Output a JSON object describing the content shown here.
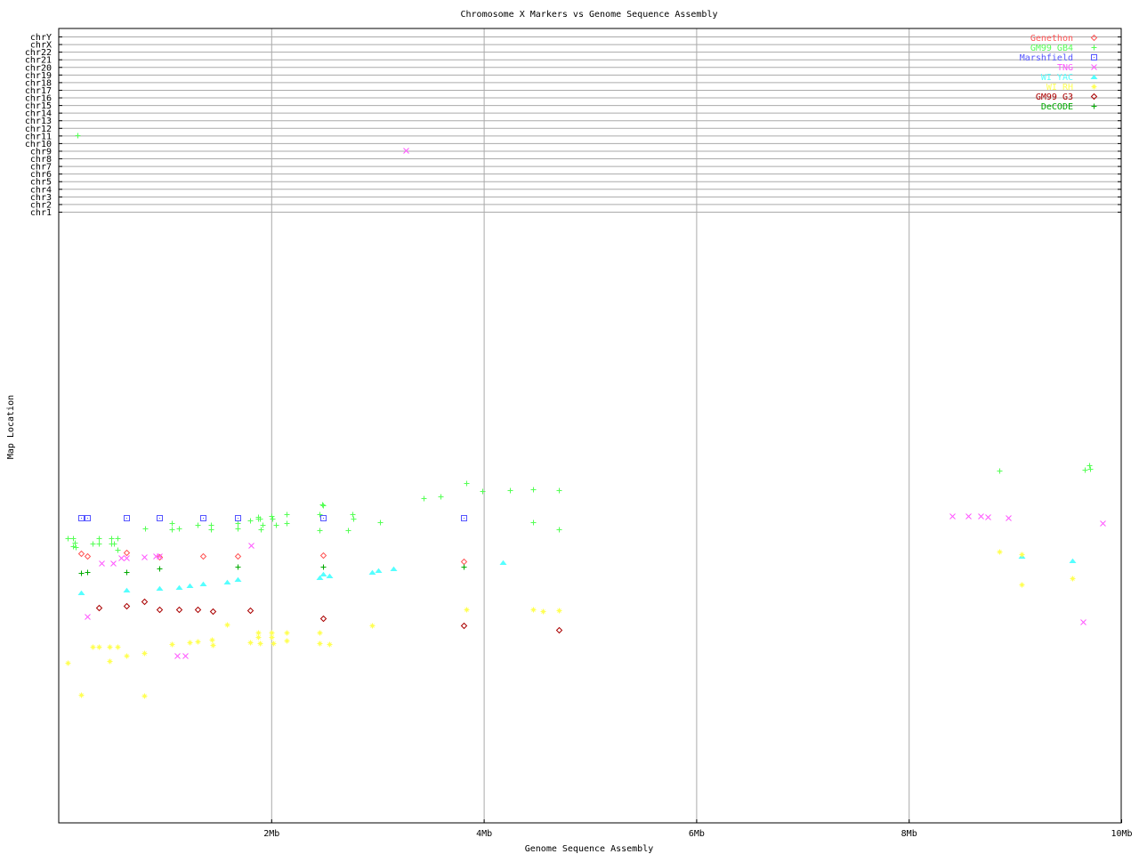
{
  "chart_data": {
    "type": "scatter",
    "title": "Chromosome X Markers vs Genome Sequence Assembly",
    "xlabel": "Genome Sequence Assembly",
    "ylabel": "Map Location",
    "xlim": [
      0,
      10
    ],
    "x_unit": "Mb",
    "x_ticks": [
      {
        "value": 2,
        "label": "2Mb"
      },
      {
        "value": 4,
        "label": "4Mb"
      },
      {
        "value": 6,
        "label": "6Mb"
      },
      {
        "value": 8,
        "label": "8Mb"
      },
      {
        "value": 10,
        "label": "10Mb"
      }
    ],
    "ylim": [
      0,
      260
    ],
    "chromosome_ticks": [
      "chr1",
      "chr2",
      "chr3",
      "chr4",
      "chr5",
      "chr6",
      "chr7",
      "chr8",
      "chr9",
      "chr10",
      "chr11",
      "chr12",
      "chr13",
      "chr14",
      "chr15",
      "chr16",
      "chr17",
      "chr18",
      "chr19",
      "chr20",
      "chr21",
      "chr22",
      "chrX",
      "chrY"
    ],
    "grid": true,
    "legend_placement": "top-right",
    "series": [
      {
        "name": "Genethon",
        "color": "#ff5555",
        "marker": "diamond",
        "points": [
          [
            0.21,
            88.2
          ],
          [
            0.27,
            87.3
          ],
          [
            0.64,
            88.5
          ],
          [
            0.95,
            87.0
          ],
          [
            1.36,
            87.3
          ],
          [
            1.68,
            87.3
          ],
          [
            2.49,
            87.6
          ],
          [
            3.81,
            85.6
          ]
        ]
      },
      {
        "name": "GM99 GB4",
        "color": "#55ff55",
        "marker": "plus",
        "points": [
          [
            0.08,
            93.1
          ],
          [
            0.13,
            93.1
          ],
          [
            0.15,
            91.7
          ],
          [
            0.13,
            90.5
          ],
          [
            0.16,
            90.2
          ],
          [
            0.32,
            91.4
          ],
          [
            0.38,
            93.1
          ],
          [
            0.38,
            91.4
          ],
          [
            0.49,
            93.1
          ],
          [
            0.49,
            91.4
          ],
          [
            0.52,
            91.4
          ],
          [
            0.55,
            93.1
          ],
          [
            0.55,
            89.3
          ],
          [
            0.81,
            96.3
          ],
          [
            1.06,
            98.1
          ],
          [
            1.06,
            96.0
          ],
          [
            1.13,
            96.3
          ],
          [
            1.31,
            97.5
          ],
          [
            1.43,
            97.5
          ],
          [
            1.43,
            96.0
          ],
          [
            1.68,
            96.3
          ],
          [
            1.68,
            98.1
          ],
          [
            1.8,
            98.9
          ],
          [
            1.88,
            99.5
          ],
          [
            1.89,
            99.5
          ],
          [
            1.9,
            96.0
          ],
          [
            1.92,
            97.5
          ],
          [
            1.88,
            100.1
          ],
          [
            2.0,
            100.4
          ],
          [
            2.01,
            99.5
          ],
          [
            2.04,
            97.5
          ],
          [
            2.14,
            101.0
          ],
          [
            2.14,
            98.1
          ],
          [
            2.48,
            104.2
          ],
          [
            2.49,
            103.9
          ],
          [
            2.45,
            101.0
          ],
          [
            2.45,
            95.7
          ],
          [
            2.72,
            95.7
          ],
          [
            2.76,
            101.0
          ],
          [
            2.77,
            99.5
          ],
          [
            3.02,
            98.4
          ],
          [
            3.43,
            106.2
          ],
          [
            3.59,
            106.8
          ],
          [
            3.84,
            111.2
          ],
          [
            3.99,
            108.5
          ],
          [
            4.25,
            108.8
          ],
          [
            4.46,
            109.1
          ],
          [
            4.71,
            108.8
          ],
          [
            4.46,
            98.4
          ],
          [
            4.71,
            96.0
          ],
          [
            8.85,
            115.2
          ],
          [
            9.66,
            115.5
          ],
          [
            9.7,
            117.0
          ],
          [
            9.71,
            115.8
          ]
        ]
      },
      {
        "name": "Marshfield",
        "color": "#5555ff",
        "marker": "square",
        "points": [
          [
            0.21,
            99.8
          ],
          [
            0.27,
            99.8
          ],
          [
            0.64,
            99.8
          ],
          [
            0.95,
            99.8
          ],
          [
            1.36,
            99.8
          ],
          [
            1.68,
            99.8
          ],
          [
            2.49,
            99.8
          ],
          [
            3.81,
            99.8
          ]
        ]
      },
      {
        "name": "TNG",
        "color": "#ff55ff",
        "marker": "cross",
        "points": [
          [
            0.4,
            85.0
          ],
          [
            0.51,
            85.0
          ],
          [
            0.59,
            86.7
          ],
          [
            0.64,
            86.7
          ],
          [
            0.8,
            87.0
          ],
          [
            0.91,
            87.3
          ],
          [
            0.95,
            87.3
          ],
          [
            1.81,
            90.8
          ],
          [
            0.27,
            67.5
          ],
          [
            1.11,
            54.7
          ],
          [
            1.19,
            54.7
          ],
          [
            8.41,
            100.4
          ],
          [
            8.56,
            100.4
          ],
          [
            8.68,
            100.4
          ],
          [
            8.74,
            100.1
          ],
          [
            8.94,
            99.8
          ],
          [
            9.82,
            98.1
          ],
          [
            9.64,
            65.8
          ]
        ]
      },
      {
        "name": "WI YAC",
        "color": "#55ffff",
        "marker": "triangle",
        "points": [
          [
            0.21,
            75.4
          ],
          [
            0.64,
            76.2
          ],
          [
            0.95,
            76.8
          ],
          [
            1.13,
            77.1
          ],
          [
            1.23,
            77.7
          ],
          [
            1.36,
            78.3
          ],
          [
            1.58,
            78.9
          ],
          [
            1.68,
            79.7
          ],
          [
            2.45,
            80.3
          ],
          [
            2.49,
            81.5
          ],
          [
            2.55,
            80.9
          ],
          [
            2.95,
            82.1
          ],
          [
            3.01,
            82.6
          ],
          [
            3.15,
            83.2
          ],
          [
            4.18,
            85.3
          ],
          [
            9.06,
            87.3
          ],
          [
            9.54,
            85.8
          ]
        ]
      },
      {
        "name": "WI RH",
        "color": "#ffff55",
        "marker": "star",
        "points": [
          [
            1.58,
            64.9
          ],
          [
            1.88,
            62.3
          ],
          [
            1.88,
            60.8
          ],
          [
            2.0,
            62.3
          ],
          [
            2.0,
            60.8
          ],
          [
            2.14,
            62.3
          ],
          [
            1.8,
            59.1
          ],
          [
            1.89,
            58.8
          ],
          [
            2.02,
            58.8
          ],
          [
            2.14,
            59.7
          ],
          [
            1.06,
            58.5
          ],
          [
            1.23,
            59.1
          ],
          [
            1.31,
            59.4
          ],
          [
            1.44,
            59.9
          ],
          [
            1.45,
            58.2
          ],
          [
            0.32,
            57.6
          ],
          [
            0.38,
            57.6
          ],
          [
            0.48,
            57.6
          ],
          [
            0.55,
            57.6
          ],
          [
            0.64,
            54.7
          ],
          [
            0.8,
            55.6
          ],
          [
            0.08,
            52.4
          ],
          [
            0.48,
            53.0
          ],
          [
            0.21,
            41.9
          ],
          [
            0.8,
            41.6
          ],
          [
            3.84,
            69.8
          ],
          [
            4.46,
            69.8
          ],
          [
            4.56,
            69.3
          ],
          [
            4.71,
            69.5
          ],
          [
            2.45,
            62.3
          ],
          [
            2.45,
            58.8
          ],
          [
            2.55,
            58.5
          ],
          [
            2.95,
            64.6
          ],
          [
            8.85,
            88.8
          ],
          [
            9.06,
            87.9
          ],
          [
            9.06,
            78.0
          ],
          [
            9.54,
            80.0
          ]
        ]
      },
      {
        "name": "GM99 G3",
        "color": "#aa0000",
        "marker": "diamond",
        "points": [
          [
            0.38,
            70.4
          ],
          [
            0.64,
            71.0
          ],
          [
            0.8,
            72.5
          ],
          [
            0.95,
            69.8
          ],
          [
            1.13,
            69.8
          ],
          [
            1.31,
            69.8
          ],
          [
            1.45,
            69.3
          ],
          [
            1.8,
            69.5
          ],
          [
            2.49,
            66.9
          ],
          [
            3.81,
            64.6
          ],
          [
            4.71,
            63.1
          ]
        ]
      },
      {
        "name": "DeCODE",
        "color": "#00aa00",
        "marker": "plus",
        "points": [
          [
            0.21,
            81.8
          ],
          [
            0.27,
            82.1
          ],
          [
            0.64,
            82.1
          ],
          [
            0.95,
            83.2
          ],
          [
            1.68,
            83.8
          ],
          [
            2.49,
            83.8
          ],
          [
            3.81,
            83.8
          ]
        ]
      }
    ],
    "off_chromosome_points": [
      {
        "series": "GM99 GB4",
        "chrom": "chr11",
        "x": 0.18
      },
      {
        "series": "TNG",
        "chrom": "chr9",
        "x": 3.27
      }
    ]
  }
}
